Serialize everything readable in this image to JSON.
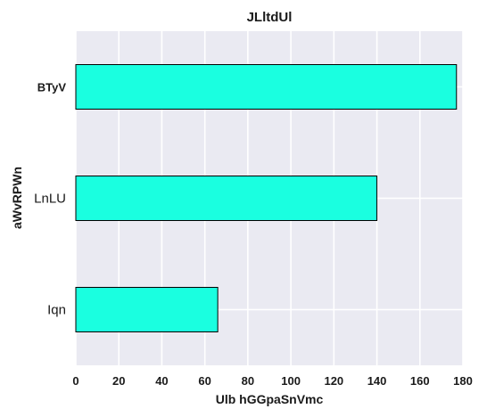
{
  "chart_data": {
    "type": "bar",
    "orientation": "horizontal",
    "title": "JLltdUl",
    "xlabel": "Ulb hGGpaSnVmc",
    "ylabel": "aWvRPWn",
    "categories": [
      "Iqn",
      "LnLU",
      "BTyV"
    ],
    "values": [
      66,
      140,
      177
    ],
    "xlim": [
      0,
      180
    ],
    "xticks": [
      "0",
      "20",
      "40",
      "60",
      "80",
      "100",
      "120",
      "140",
      "160",
      "180"
    ],
    "grid": true,
    "bar_color": "#1affe0",
    "bar_edge_color": "#000000",
    "plot_background": "#eaeaf2",
    "legend": "none"
  }
}
